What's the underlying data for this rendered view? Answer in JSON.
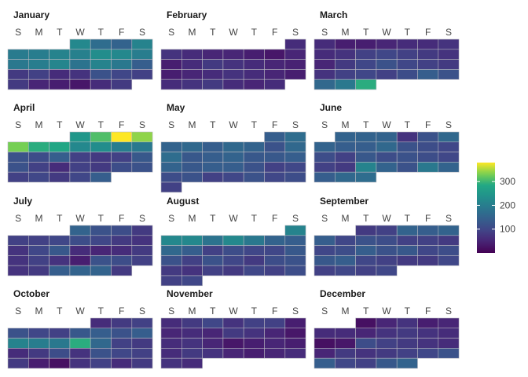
{
  "chart_data": {
    "type": "heatmap",
    "subtype": "calendar",
    "title": "",
    "weekday_labels": [
      "S",
      "M",
      "T",
      "W",
      "T",
      "F",
      "S"
    ],
    "colorscale": "viridis",
    "color_range": [
      0,
      380
    ],
    "colorbar_ticks": [
      100,
      200,
      300
    ],
    "months": [
      {
        "name": "January",
        "start_day": 3,
        "values": [
          220,
          170,
          150,
          210,
          195,
          200,
          210,
          205,
          230,
          220,
          200,
          190,
          200,
          215,
          180,
          210,
          190,
          140,
          80,
          90,
          60,
          70,
          120,
          100,
          90,
          80,
          50,
          40,
          30,
          60,
          80
        ]
      },
      {
        "name": "February",
        "start_day": 6,
        "values": [
          60,
          70,
          60,
          50,
          50,
          40,
          30,
          50,
          40,
          60,
          80,
          70,
          60,
          50,
          45,
          40,
          50,
          60,
          70,
          60,
          50,
          40,
          60,
          70,
          80,
          60,
          50,
          60
        ]
      },
      {
        "name": "March",
        "start_day": 0,
        "values": [
          60,
          40,
          40,
          50,
          60,
          60,
          70,
          60,
          70,
          90,
          100,
          90,
          80,
          70,
          50,
          80,
          100,
          120,
          100,
          90,
          80,
          70,
          90,
          100,
          90,
          110,
          140,
          120,
          160,
          190,
          290
        ]
      },
      {
        "name": "April",
        "start_day": 3,
        "values": [
          250,
          310,
          380,
          340,
          330,
          290,
          280,
          220,
          230,
          200,
          190,
          120,
          110,
          140,
          90,
          80,
          90,
          130,
          120,
          90,
          60,
          90,
          80,
          110,
          120,
          90,
          100,
          80,
          100,
          140
        ]
      },
      {
        "name": "May",
        "start_day": 5,
        "values": [
          140,
          170,
          150,
          160,
          140,
          160,
          150,
          120,
          160,
          170,
          130,
          140,
          150,
          130,
          130,
          140,
          150,
          130,
          140,
          140,
          120,
          90,
          100,
          110,
          120,
          90,
          100,
          120,
          100,
          110,
          90
        ]
      },
      {
        "name": "June",
        "start_day": 1,
        "values": [
          150,
          150,
          150,
          70,
          120,
          160,
          150,
          140,
          140,
          160,
          120,
          110,
          100,
          110,
          90,
          130,
          110,
          120,
          110,
          100,
          90,
          80,
          210,
          150,
          120,
          190,
          150,
          140,
          160,
          170
        ]
      },
      {
        "name": "July",
        "start_day": 3,
        "values": [
          150,
          120,
          110,
          80,
          90,
          90,
          100,
          110,
          100,
          80,
          70,
          70,
          100,
          130,
          60,
          50,
          60,
          80,
          70,
          90,
          70,
          40,
          120,
          110,
          90,
          70,
          80,
          140,
          150,
          150,
          80
        ]
      },
      {
        "name": "August",
        "start_day": 6,
        "values": [
          210,
          220,
          220,
          180,
          220,
          190,
          150,
          140,
          160,
          140,
          90,
          110,
          100,
          100,
          130,
          120,
          90,
          120,
          100,
          80,
          110,
          120,
          80,
          70,
          90,
          80,
          100,
          90,
          110,
          90,
          100
        ]
      },
      {
        "name": "September",
        "start_day": 2,
        "values": [
          80,
          90,
          150,
          140,
          150,
          140,
          100,
          120,
          110,
          90,
          90,
          80,
          100,
          110,
          140,
          120,
          130,
          100,
          110,
          130,
          140,
          100,
          90,
          80,
          80,
          100,
          90,
          100,
          90,
          100
        ]
      },
      {
        "name": "October",
        "start_day": 4,
        "values": [
          60,
          80,
          90,
          120,
          100,
          90,
          130,
          140,
          120,
          140,
          210,
          200,
          190,
          290,
          160,
          90,
          80,
          60,
          80,
          110,
          70,
          120,
          100,
          90,
          80,
          40,
          20,
          70,
          90,
          60,
          80
        ]
      },
      {
        "name": "November",
        "start_day": 0,
        "values": [
          60,
          80,
          100,
          70,
          90,
          90,
          40,
          50,
          60,
          50,
          80,
          70,
          50,
          30,
          60,
          70,
          50,
          30,
          40,
          50,
          40,
          60,
          80,
          70,
          50,
          40,
          50,
          60,
          70,
          60
        ]
      },
      {
        "name": "December",
        "start_day": 2,
        "values": [
          20,
          50,
          70,
          40,
          50,
          60,
          60,
          50,
          70,
          80,
          70,
          60,
          20,
          30,
          110,
          90,
          80,
          70,
          60,
          50,
          80,
          70,
          80,
          90,
          100,
          120,
          140,
          100,
          90,
          130,
          150
        ]
      }
    ]
  }
}
